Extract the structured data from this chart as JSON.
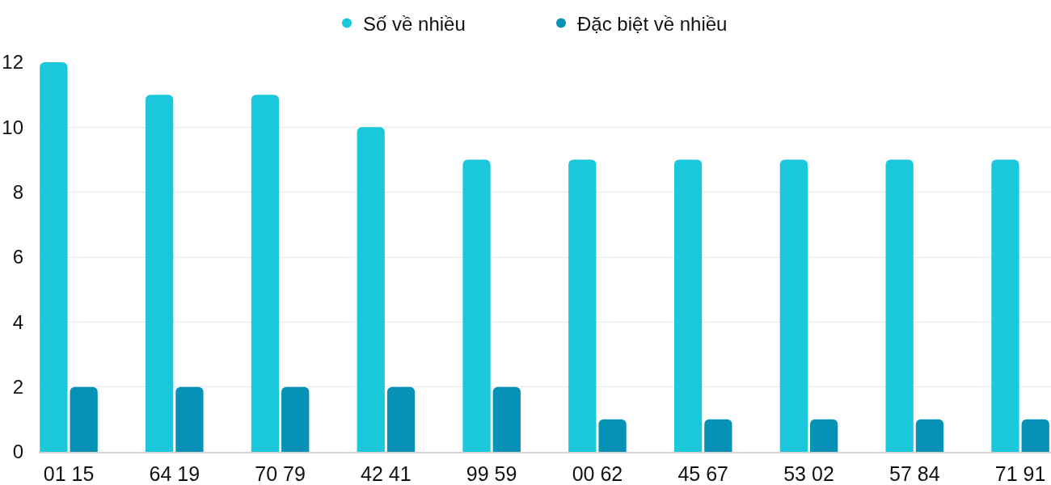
{
  "chart_data": {
    "type": "bar",
    "categories": [
      "01 15",
      "64 19",
      "70 79",
      "42 41",
      "99 59",
      "00 62",
      "45 67",
      "53 02",
      "57 84",
      "71 91"
    ],
    "series": [
      {
        "name": "Số về nhiều",
        "color": "#1bc8db",
        "values": [
          12,
          11,
          11,
          10,
          9,
          9,
          9,
          9,
          9,
          9
        ]
      },
      {
        "name": "Đặc biệt về nhiều",
        "color": "#0592b6",
        "values": [
          2,
          2,
          2,
          2,
          2,
          1,
          1,
          1,
          1,
          1
        ]
      }
    ],
    "ylim": [
      0,
      12
    ],
    "yticks": [
      0,
      2,
      4,
      6,
      8,
      10,
      12
    ],
    "grid": "y",
    "legend": "top"
  }
}
